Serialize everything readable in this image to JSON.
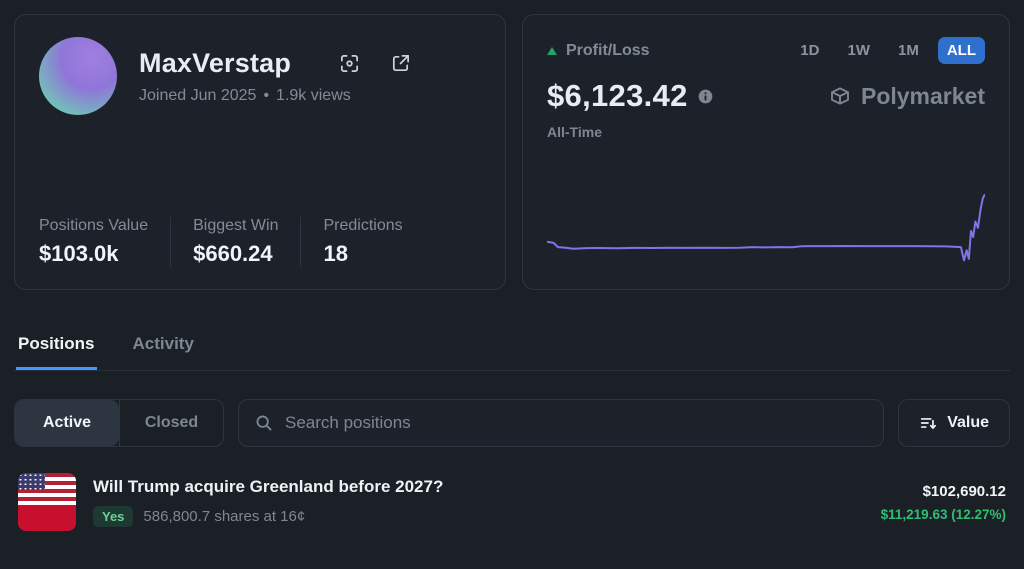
{
  "profile": {
    "name": "MaxVerstap",
    "joined": "Joined Jun 2025",
    "separator": "•",
    "views": "1.9k views",
    "stats": [
      {
        "label": "Positions Value",
        "value": "$103.0k"
      },
      {
        "label": "Biggest Win",
        "value": "$660.24"
      },
      {
        "label": "Predictions",
        "value": "18"
      }
    ]
  },
  "pnl": {
    "title": "Profit/Loss",
    "ranges": [
      "1D",
      "1W",
      "1M",
      "ALL"
    ],
    "selected_range": "ALL",
    "value": "$6,123.42",
    "period_label": "All-Time",
    "brand": "Polymarket"
  },
  "chart_data": {
    "type": "line",
    "title": "Profit/Loss All-Time",
    "xlabel": "",
    "ylabel": "Profit/Loss ($)",
    "ylim": [
      -2600,
      6400
    ],
    "grid": false,
    "legend": "none",
    "line_color": "#8273e8",
    "series": [
      {
        "name": "Profit/Loss",
        "x": [
          0,
          1.5,
          2.5,
          4,
          6,
          9,
          12,
          16,
          20,
          24,
          28,
          32,
          36,
          40,
          44,
          47,
          50,
          53,
          56,
          58,
          60,
          64,
          68,
          72,
          76,
          80,
          84,
          88,
          91,
          93,
          94.5,
          95.2,
          95.8,
          96.3,
          96.8,
          97.3,
          97.8,
          98.4,
          99,
          99.5,
          100
        ],
        "values": [
          0,
          -150,
          -700,
          -760,
          -900,
          -830,
          -810,
          -840,
          -790,
          -810,
          -770,
          -800,
          -780,
          -805,
          -775,
          -690,
          -730,
          -700,
          -710,
          -590,
          -560,
          -575,
          -555,
          -570,
          -560,
          -565,
          -575,
          -585,
          -605,
          -640,
          -700,
          -2400,
          -1100,
          -2200,
          1400,
          600,
          2600,
          1800,
          4200,
          5600,
          6123.42
        ]
      }
    ],
    "final_value": 6123.42
  },
  "tabs": [
    {
      "label": "Positions",
      "active": true
    },
    {
      "label": "Activity",
      "active": false
    }
  ],
  "filters": {
    "segments": [
      {
        "label": "Active",
        "active": true
      },
      {
        "label": "Closed",
        "active": false
      }
    ],
    "search_placeholder": "Search positions",
    "sort_label": "Value"
  },
  "positions": [
    {
      "title": "Will Trump acquire Greenland before 2027?",
      "outcome": "Yes",
      "shares_text": "586,800.7 shares at 16¢",
      "value": "$102,690.12",
      "pnl": "$11,219.63 (12.27%)"
    }
  ],
  "colors": {
    "accent_blue": "#2f6fce",
    "tab_underline_blue": "#4596ff",
    "chart_purple": "#8273e8",
    "positive_green": "#2fbf71",
    "badge_green_text": "#6fcf9a"
  }
}
